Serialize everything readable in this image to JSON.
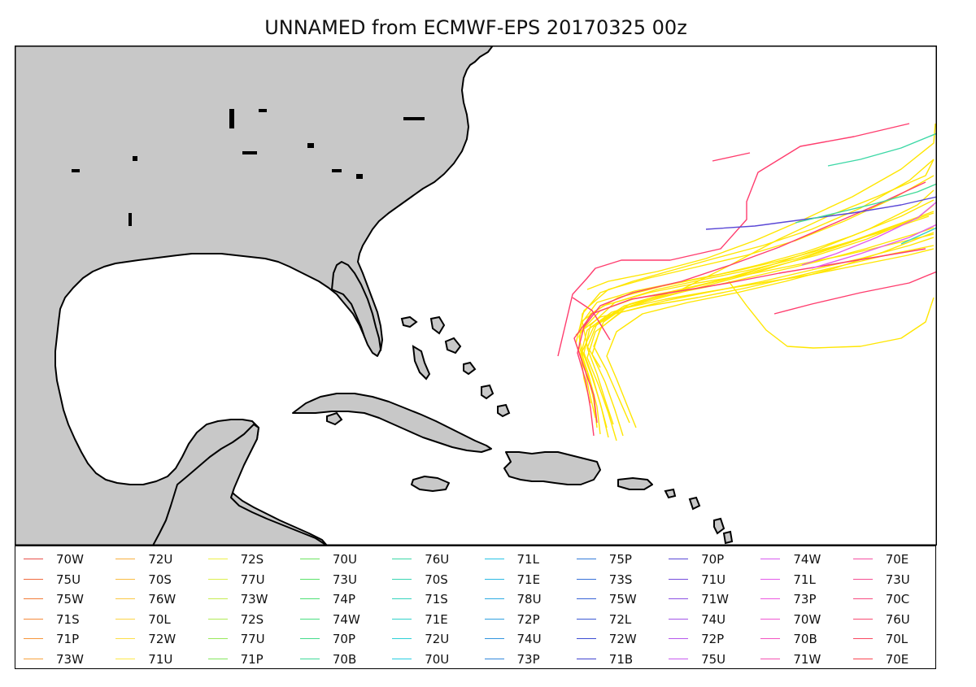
{
  "title": "UNNAMED from ECMWF-EPS 20170325 00z",
  "colors": {
    "land": "#c8c8c8",
    "water": "#ffffff",
    "coast": "#000000",
    "track_primary": "#ffe600",
    "track_secondary": "#ff3d6e"
  },
  "legend": {
    "columns": [
      [
        {
          "label": "70W",
          "color": "#e8504a"
        },
        {
          "label": "75U",
          "color": "#f06a3e"
        },
        {
          "label": "75W",
          "color": "#f27c38"
        },
        {
          "label": "71S",
          "color": "#f58a3a"
        },
        {
          "label": "71P",
          "color": "#f6963c"
        },
        {
          "label": "73W",
          "color": "#f7a23e"
        }
      ],
      [
        {
          "label": "72U",
          "color": "#f8b040"
        },
        {
          "label": "70S",
          "color": "#f9bc42"
        },
        {
          "label": "76W",
          "color": "#fac844"
        },
        {
          "label": "70L",
          "color": "#fbd446"
        },
        {
          "label": "72W",
          "color": "#fcde48"
        },
        {
          "label": "71U",
          "color": "#fde84a"
        }
      ],
      [
        {
          "label": "72S",
          "color": "#eef04a"
        },
        {
          "label": "77U",
          "color": "#dcee4e"
        },
        {
          "label": "73W",
          "color": "#c6ec52"
        },
        {
          "label": "72S",
          "color": "#b0ea56"
        },
        {
          "label": "77U",
          "color": "#9ae85a"
        },
        {
          "label": "71P",
          "color": "#84e65e"
        }
      ],
      [
        {
          "label": "70U",
          "color": "#6ee462"
        },
        {
          "label": "73U",
          "color": "#5ae26a"
        },
        {
          "label": "74P",
          "color": "#4ee074"
        },
        {
          "label": "74W",
          "color": "#48de80"
        },
        {
          "label": "70P",
          "color": "#44dc8c"
        },
        {
          "label": "70B",
          "color": "#40da98"
        }
      ],
      [
        {
          "label": "76U",
          "color": "#3cd8a6"
        },
        {
          "label": "70S",
          "color": "#38d6b2"
        },
        {
          "label": "71S",
          "color": "#34d4be"
        },
        {
          "label": "71E",
          "color": "#30d2ca"
        },
        {
          "label": "72U",
          "color": "#2cd0d6"
        },
        {
          "label": "70U",
          "color": "#28cee2"
        }
      ],
      [
        {
          "label": "71L",
          "color": "#28c4e6"
        },
        {
          "label": "71E",
          "color": "#2ab8e4"
        },
        {
          "label": "78U",
          "color": "#2cace2"
        },
        {
          "label": "72P",
          "color": "#2ea0e0"
        },
        {
          "label": "74U",
          "color": "#3094de"
        },
        {
          "label": "73P",
          "color": "#3288dc"
        }
      ],
      [
        {
          "label": "75P",
          "color": "#347cda"
        },
        {
          "label": "73S",
          "color": "#3670d8"
        },
        {
          "label": "75W",
          "color": "#3864d6"
        },
        {
          "label": "72L",
          "color": "#3a58d4"
        },
        {
          "label": "72W",
          "color": "#3c4cd2"
        },
        {
          "label": "71B",
          "color": "#4044d0"
        }
      ],
      [
        {
          "label": "70P",
          "color": "#5a48d6"
        },
        {
          "label": "71U",
          "color": "#744cdc"
        },
        {
          "label": "71W",
          "color": "#8c50e2"
        },
        {
          "label": "74U",
          "color": "#a254e8"
        },
        {
          "label": "72P",
          "color": "#b658ec"
        },
        {
          "label": "75U",
          "color": "#c85cf0"
        }
      ],
      [
        {
          "label": "74W",
          "color": "#d85cf0"
        },
        {
          "label": "71L",
          "color": "#e45aea"
        },
        {
          "label": "73P",
          "color": "#ec58e0"
        },
        {
          "label": "70W",
          "color": "#f056d2"
        },
        {
          "label": "70B",
          "color": "#f254c2"
        },
        {
          "label": "71W",
          "color": "#f452b2"
        }
      ],
      [
        {
          "label": "70E",
          "color": "#f550a2"
        },
        {
          "label": "73U",
          "color": "#f64e92"
        },
        {
          "label": "70C",
          "color": "#f74c82"
        },
        {
          "label": "76U",
          "color": "#f84a72"
        },
        {
          "label": "70L",
          "color": "#f94862"
        },
        {
          "label": "70E",
          "color": "#fa4652"
        }
      ]
    ]
  }
}
